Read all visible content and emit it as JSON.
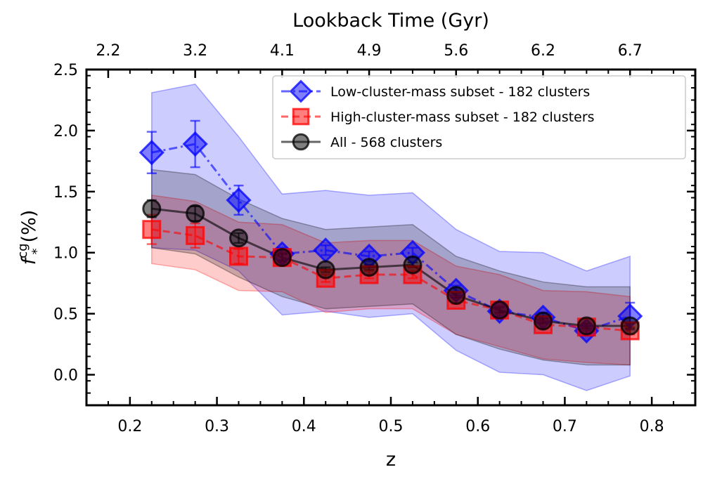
{
  "chart_data": {
    "type": "line",
    "title": "",
    "xlabel": "z",
    "ylabel_main": "f",
    "ylabel_sup": "cg",
    "ylabel_sub": "*",
    "ylabel_unit": "(%)",
    "top_xlabel": "Lookback Time (Gyr)",
    "xlim": [
      0.15,
      0.85
    ],
    "ylim": [
      -0.25,
      2.5
    ],
    "xticks": [
      0.2,
      0.3,
      0.4,
      0.5,
      0.6,
      0.7,
      0.8
    ],
    "xtick_labels": [
      "0.2",
      "0.3",
      "0.4",
      "0.5",
      "0.6",
      "0.7",
      "0.8"
    ],
    "yticks": [
      0.0,
      0.5,
      1.0,
      1.5,
      2.0,
      2.5
    ],
    "ytick_labels": [
      "0.0",
      "0.5",
      "1.0",
      "1.5",
      "2.0",
      "2.5"
    ],
    "top_ticks": [
      {
        "z": 0.175,
        "label": "2.2"
      },
      {
        "z": 0.275,
        "label": "3.2"
      },
      {
        "z": 0.375,
        "label": "4.1"
      },
      {
        "z": 0.475,
        "label": "4.9"
      },
      {
        "z": 0.575,
        "label": "5.6"
      },
      {
        "z": 0.675,
        "label": "6.2"
      },
      {
        "z": 0.775,
        "label": "6.7"
      }
    ],
    "legend_position": "top-right",
    "grid": false,
    "x": [
      0.225,
      0.275,
      0.325,
      0.375,
      0.425,
      0.475,
      0.525,
      0.575,
      0.625,
      0.675,
      0.725,
      0.775
    ],
    "series": [
      {
        "name": "Low-cluster-mass subset - 182 clusters",
        "marker": "diamond",
        "linestyle": "dashdot",
        "color": "#0000ff",
        "values": [
          1.82,
          1.89,
          1.43,
          0.99,
          1.02,
          0.97,
          1.0,
          0.69,
          0.52,
          0.47,
          0.36,
          0.48
        ],
        "err": [
          0.17,
          0.19,
          0.12,
          0.05,
          0.04,
          0.04,
          0.04,
          0.04,
          0.04,
          0.04,
          0.04,
          0.11
        ],
        "band_upper": [
          2.31,
          2.38,
          1.95,
          1.48,
          1.51,
          1.47,
          1.49,
          1.19,
          1.01,
          1.0,
          0.85,
          0.97
        ],
        "band_lower": [
          1.04,
          1.02,
          0.85,
          0.49,
          0.52,
          0.47,
          0.5,
          0.2,
          0.02,
          0.0,
          -0.13,
          -0.01
        ]
      },
      {
        "name": "High-cluster-mass subset - 182 clusters",
        "marker": "square",
        "linestyle": "dashed",
        "color": "#ff0000",
        "values": [
          1.19,
          1.14,
          0.97,
          0.96,
          0.79,
          0.82,
          0.82,
          0.61,
          0.53,
          0.41,
          0.39,
          0.36
        ],
        "err": [
          0.12,
          0.1,
          0.06,
          0.04,
          0.03,
          0.03,
          0.03,
          0.03,
          0.03,
          0.03,
          0.03,
          0.03
        ],
        "band_upper": [
          1.47,
          1.42,
          1.25,
          1.23,
          1.08,
          1.1,
          1.1,
          0.89,
          0.82,
          0.69,
          0.68,
          0.64
        ],
        "band_lower": [
          0.91,
          0.86,
          0.69,
          0.68,
          0.51,
          0.54,
          0.54,
          0.33,
          0.23,
          0.13,
          0.1,
          0.08
        ]
      },
      {
        "name": "All - 568 clusters",
        "marker": "circle",
        "linestyle": "solid",
        "color": "#000000",
        "values": [
          1.36,
          1.32,
          1.12,
          0.96,
          0.86,
          0.88,
          0.9,
          0.65,
          0.53,
          0.44,
          0.4,
          0.4
        ],
        "err": [
          0.07,
          0.06,
          0.04,
          0.03,
          0.02,
          0.02,
          0.02,
          0.02,
          0.02,
          0.02,
          0.02,
          0.02
        ],
        "band_upper": [
          1.68,
          1.64,
          1.44,
          1.28,
          1.19,
          1.21,
          1.23,
          0.97,
          0.85,
          0.76,
          0.72,
          0.72
        ],
        "band_lower": [
          1.04,
          0.99,
          0.8,
          0.64,
          0.54,
          0.56,
          0.58,
          0.33,
          0.21,
          0.12,
          0.08,
          0.08
        ]
      }
    ]
  }
}
